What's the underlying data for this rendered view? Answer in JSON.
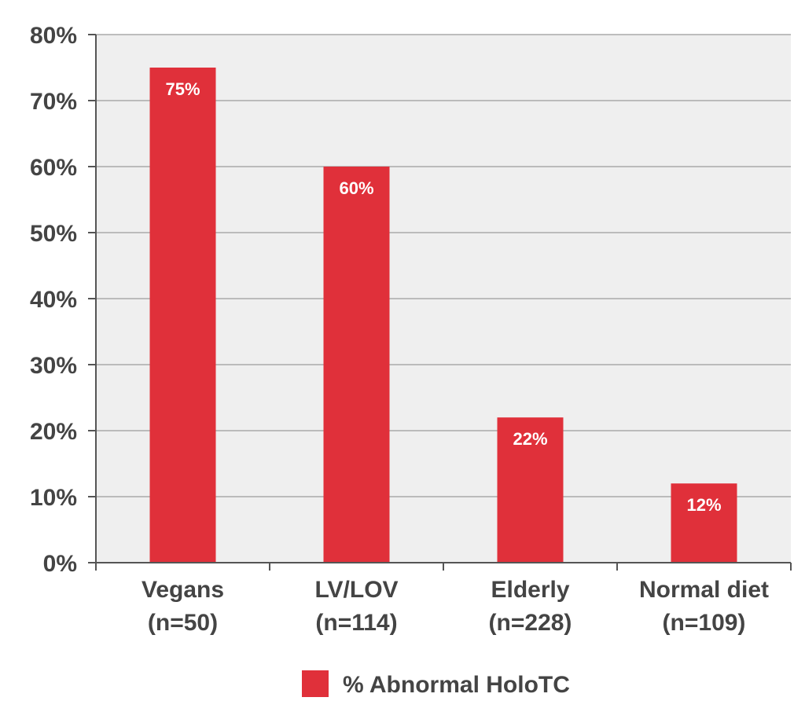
{
  "chart_data": {
    "type": "bar",
    "categories": [
      {
        "line1": "Vegans",
        "line2": "(n=50)"
      },
      {
        "line1": "LV/LOV",
        "line2": "(n=114)"
      },
      {
        "line1": "Elderly",
        "line2": "(n=228)"
      },
      {
        "line1": "Normal diet",
        "line2": "(n=109)"
      }
    ],
    "series": [
      {
        "name": "% Abnormal HoloTC",
        "values": [
          75,
          60,
          22,
          12
        ],
        "labels": [
          "75%",
          "60%",
          "22%",
          "12%"
        ],
        "color": "#e0303a"
      }
    ],
    "yticks": [
      "0%",
      "10%",
      "20%",
      "30%",
      "40%",
      "50%",
      "60%",
      "70%",
      "80%"
    ],
    "ylim": [
      0,
      80
    ],
    "grid": true,
    "legend_position": "bottom-center",
    "colors": {
      "plot_background": "#efefef",
      "gridline": "#aaaaaa",
      "axis": "#555555",
      "text": "#444444"
    }
  }
}
